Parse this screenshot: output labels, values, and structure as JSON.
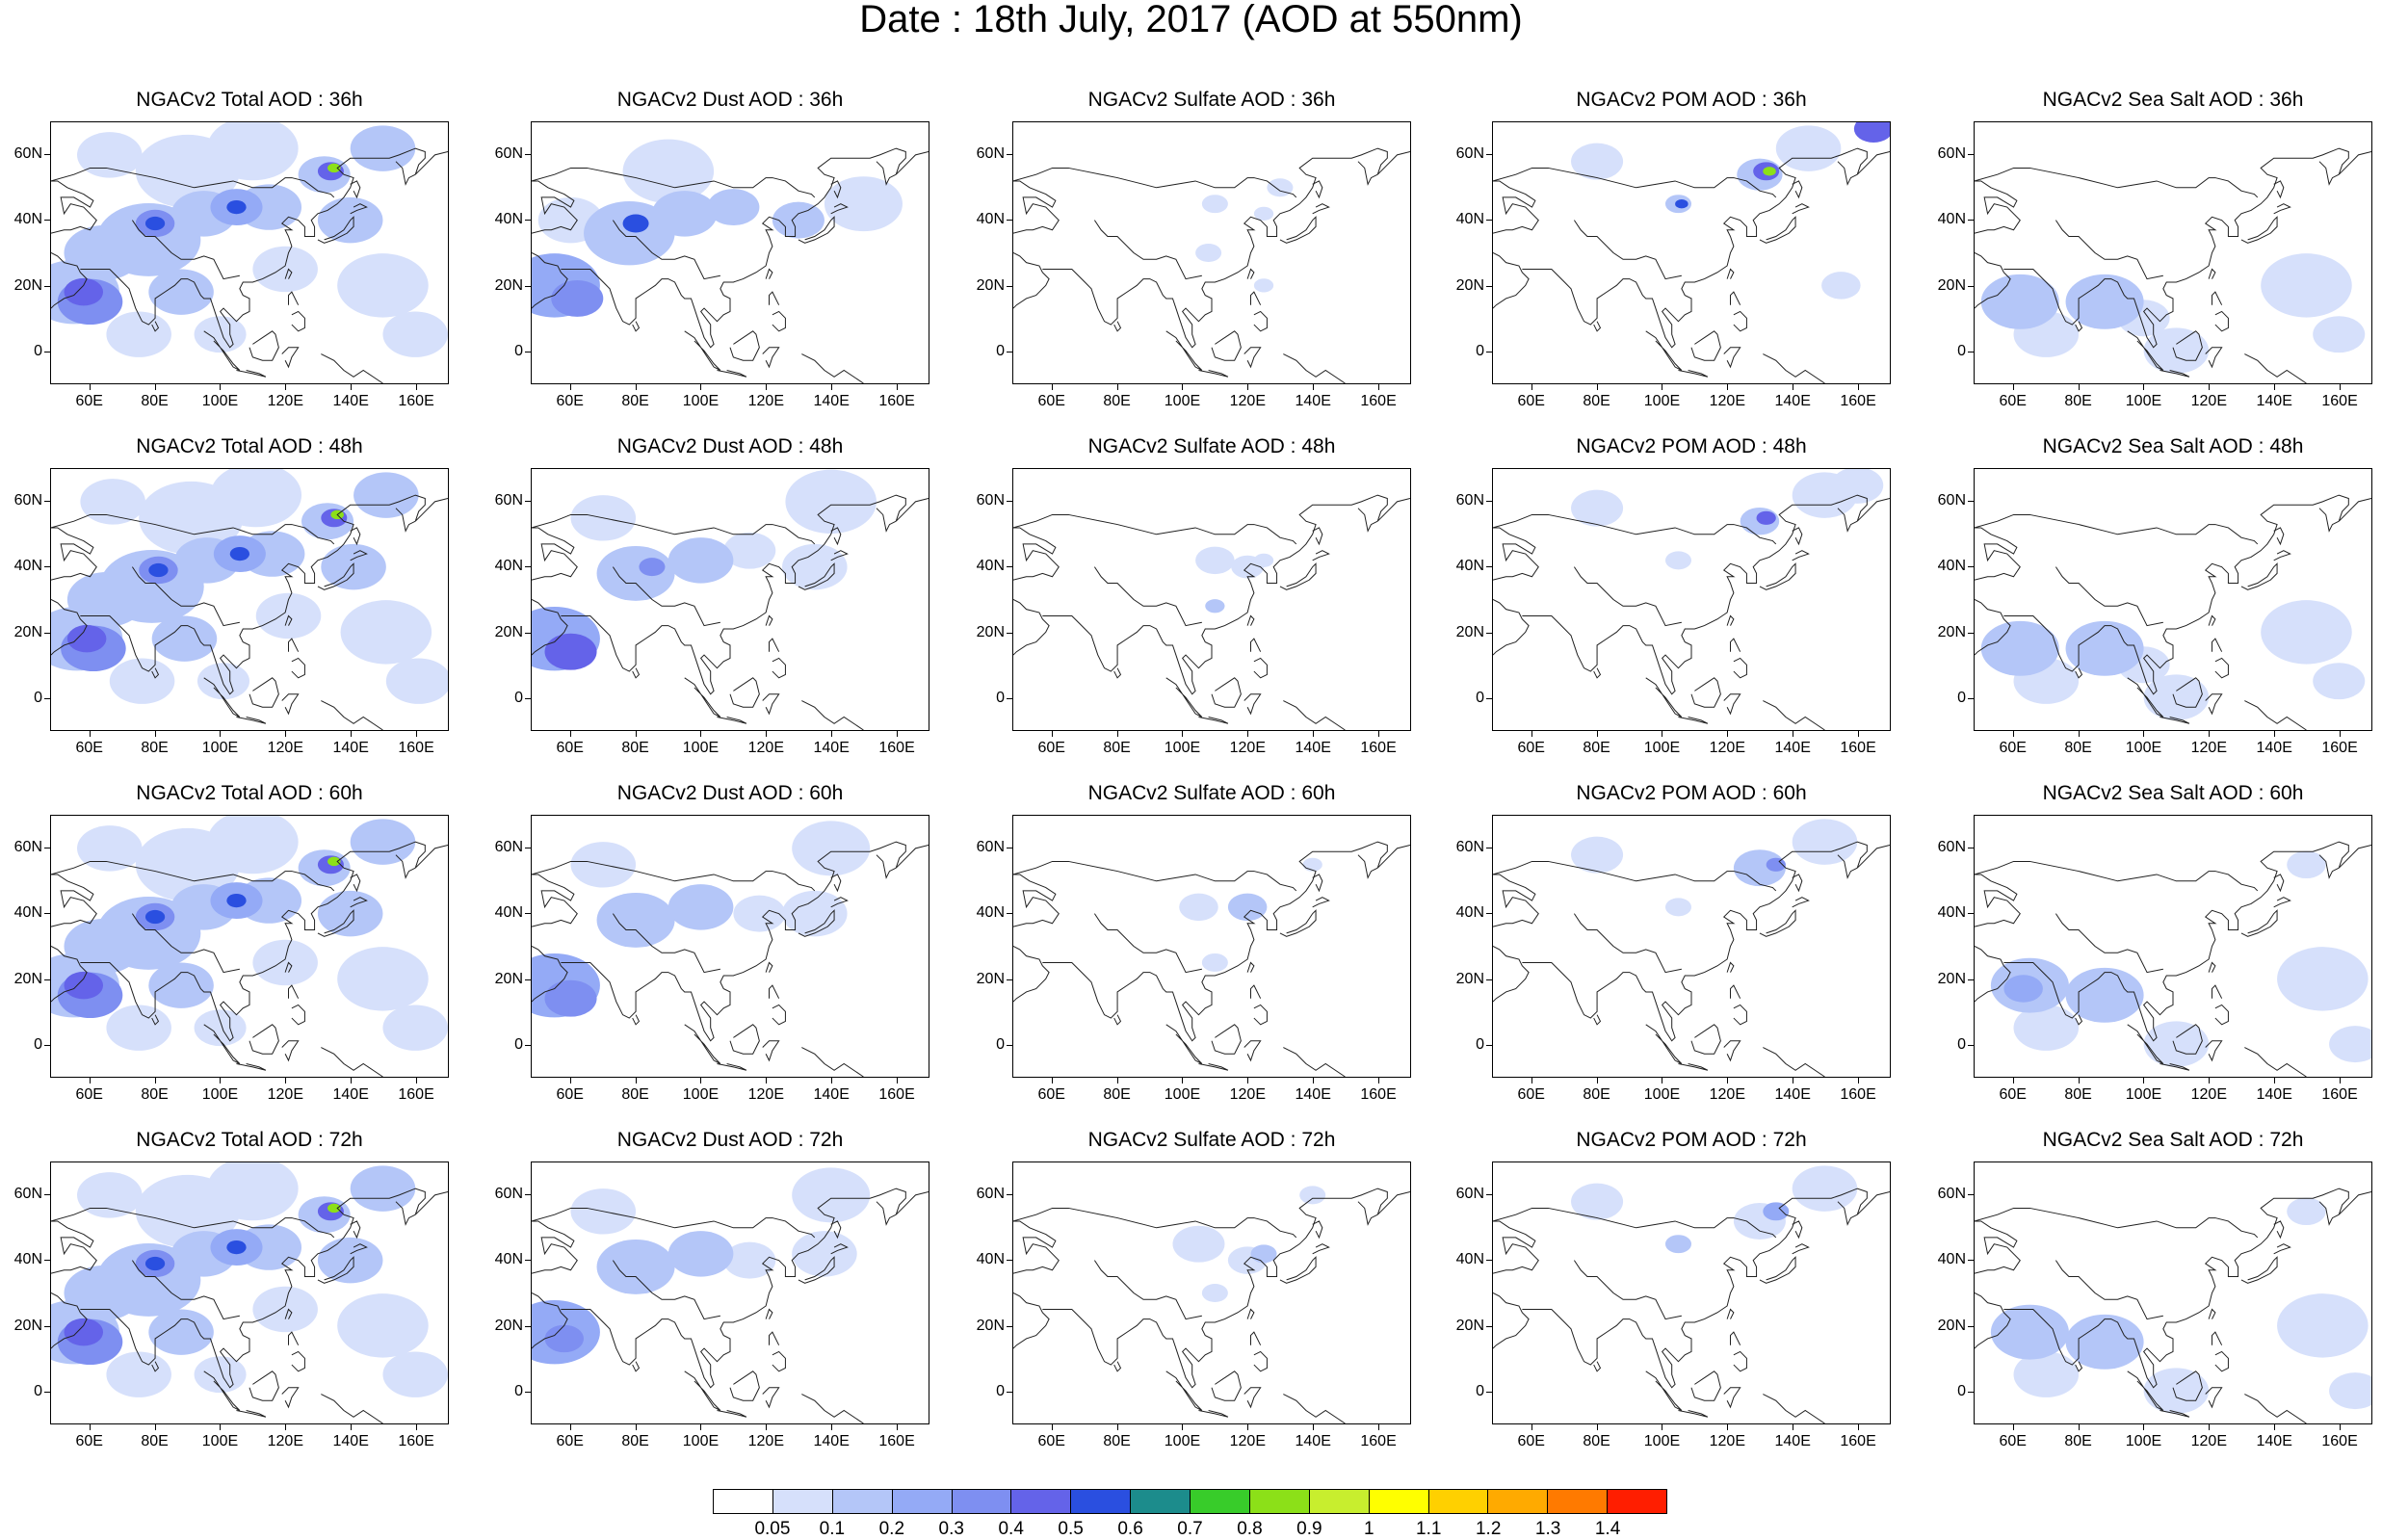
{
  "title": "Date : 18th July, 2017 (AOD at 550nm)",
  "colors": {
    "levels": [
      "#ffffff",
      "#d6e0fb",
      "#b4c6f8",
      "#94aaf6",
      "#7e8ff1",
      "#6463e9",
      "#2a4fe0",
      "#1c8c8c",
      "#38cc2a",
      "#8ce018",
      "#c8ee2e",
      "#ffff00",
      "#ffd000",
      "#ffaa00",
      "#ff7a00",
      "#ff1e00"
    ],
    "coast": "#202020"
  },
  "colorbar": {
    "labels": [
      "0.05",
      "0.1",
      "0.2",
      "0.3",
      "0.4",
      "0.5",
      "0.6",
      "0.7",
      "0.8",
      "0.9",
      "1",
      "1.1",
      "1.2",
      "1.3",
      "1.4"
    ]
  },
  "axes": {
    "lon_ticks": [
      "60E",
      "80E",
      "100E",
      "120E",
      "140E",
      "160E"
    ],
    "lat_ticks": [
      "60N",
      "40N",
      "20N",
      "0"
    ],
    "lon_values": [
      60,
      80,
      100,
      120,
      140,
      160
    ],
    "lat_values": [
      60,
      40,
      20,
      0
    ],
    "lon_range": [
      48,
      170
    ],
    "lat_range": [
      -10,
      70
    ]
  },
  "columns": [
    "total",
    "dust",
    "sulfate",
    "pom",
    "seasalt"
  ],
  "rows": [
    "36h",
    "48h",
    "60h",
    "72h"
  ],
  "panels": [
    {
      "id": "total-36",
      "title": "NGACv2 Total AOD : 36h"
    },
    {
      "id": "dust-36",
      "title": "NGACv2 Dust AOD : 36h"
    },
    {
      "id": "sulfate-36",
      "title": "NGACv2 Sulfate AOD : 36h"
    },
    {
      "id": "pom-36",
      "title": "NGACv2 POM AOD : 36h"
    },
    {
      "id": "seasalt-36",
      "title": "NGACv2 Sea Salt AOD : 36h"
    },
    {
      "id": "total-48",
      "title": "NGACv2 Total AOD : 48h"
    },
    {
      "id": "dust-48",
      "title": "NGACv2 Dust AOD : 48h"
    },
    {
      "id": "sulfate-48",
      "title": "NGACv2 Sulfate AOD : 48h"
    },
    {
      "id": "pom-48",
      "title": "NGACv2 POM AOD : 48h"
    },
    {
      "id": "seasalt-48",
      "title": "NGACv2 Sea Salt AOD : 48h"
    },
    {
      "id": "total-60",
      "title": "NGACv2 Total AOD : 60h"
    },
    {
      "id": "dust-60",
      "title": "NGACv2 Dust AOD : 60h"
    },
    {
      "id": "sulfate-60",
      "title": "NGACv2 Sulfate AOD : 60h"
    },
    {
      "id": "pom-60",
      "title": "NGACv2 POM AOD : 60h"
    },
    {
      "id": "seasalt-60",
      "title": "NGACv2 Sea Salt AOD : 60h"
    },
    {
      "id": "total-72",
      "title": "NGACv2 Total AOD : 72h"
    },
    {
      "id": "dust-72",
      "title": "NGACv2 Dust AOD : 72h"
    },
    {
      "id": "sulfate-72",
      "title": "NGACv2 Sulfate AOD : 72h"
    },
    {
      "id": "pom-72",
      "title": "NGACv2 POM AOD : 72h"
    },
    {
      "id": "seasalt-72",
      "title": "NGACv2 Sea Salt  AOD : 72h"
    }
  ]
}
